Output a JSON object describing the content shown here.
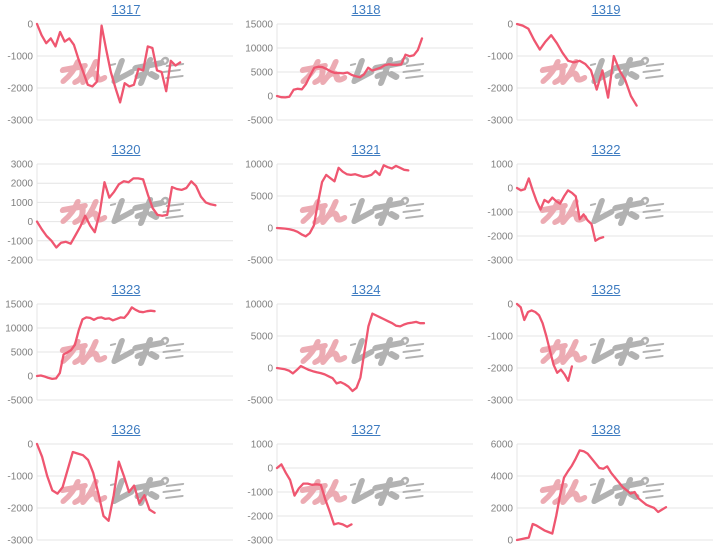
{
  "page": {
    "background": "#ffffff"
  },
  "style": {
    "line_color": "#ef5670",
    "link_color": "#3e7cc1",
    "grid_color": "#e4e4e4",
    "axis_label_color": "#7f7f7f"
  },
  "watermark": {
    "text": "みんレポ",
    "text_pink": "みん",
    "text_gray": "レポ",
    "pink": "#eba3ab",
    "gray": "#aaaaaa"
  },
  "chart_data": [
    {
      "id": "1317",
      "type": "line",
      "title": "1317",
      "xlabel": "",
      "ylabel": "",
      "legend": "none",
      "grid": true,
      "ylim": [
        -3000,
        0
      ],
      "yticks": [
        0,
        -1000,
        -2000,
        -3000
      ],
      "span": 0.73,
      "values": [
        0,
        -350,
        -600,
        -450,
        -700,
        -250,
        -550,
        -450,
        -650,
        -1100,
        -1500,
        -1900,
        -1950,
        -1800,
        -50,
        -800,
        -1500,
        -2000,
        -2450,
        -1850,
        -1950,
        -1900,
        -1400,
        -1450,
        -700,
        -750,
        -1450,
        -1500,
        -2100,
        -1150,
        -1300,
        -1200
      ]
    },
    {
      "id": "1318",
      "type": "line",
      "title": "1318",
      "xlabel": "",
      "ylabel": "",
      "legend": "none",
      "grid": true,
      "ylim": [
        -5000,
        15000
      ],
      "yticks": [
        15000,
        10000,
        5000,
        0,
        -5000
      ],
      "span": 0.74,
      "values": [
        0,
        -250,
        -300,
        -150,
        1300,
        1500,
        1400,
        2500,
        4300,
        5900,
        6100,
        6000,
        5600,
        5100,
        4800,
        4800,
        4700,
        4900,
        4400,
        4100,
        3900,
        4500,
        5900,
        5300,
        5600,
        5900,
        6400,
        6600,
        6500,
        6500,
        6600,
        8600,
        8300,
        8500,
        9600,
        12000
      ]
    },
    {
      "id": "1319",
      "type": "line",
      "title": "1319",
      "xlabel": "",
      "ylabel": "",
      "legend": "none",
      "grid": true,
      "ylim": [
        -3000,
        0
      ],
      "yticks": [
        0,
        -1000,
        -2000,
        -3000
      ],
      "span": 0.61,
      "values": [
        0,
        -50,
        -150,
        -500,
        -800,
        -550,
        -350,
        -600,
        -900,
        -1150,
        -1200,
        -1150,
        -1250,
        -1450,
        -2050,
        -1450,
        -2300,
        -1000,
        -1450,
        -1750,
        -2250,
        -2550
      ]
    },
    {
      "id": "1320",
      "type": "line",
      "title": "1320",
      "xlabel": "",
      "ylabel": "",
      "legend": "none",
      "grid": true,
      "ylim": [
        -2000,
        3000
      ],
      "yticks": [
        3000,
        2000,
        1000,
        0,
        -1000,
        -2000
      ],
      "span": 0.91,
      "values": [
        0,
        -400,
        -750,
        -1000,
        -1350,
        -1100,
        -1050,
        -1150,
        -700,
        -250,
        300,
        -200,
        -550,
        450,
        2050,
        1250,
        1550,
        1950,
        2100,
        2050,
        2250,
        2250,
        2200,
        1400,
        700,
        350,
        300,
        350,
        1800,
        1700,
        1650,
        1750,
        2100,
        1850,
        1300,
        1000,
        900,
        850
      ]
    },
    {
      "id": "1321",
      "type": "line",
      "title": "1321",
      "xlabel": "",
      "ylabel": "",
      "legend": "none",
      "grid": true,
      "ylim": [
        -5000,
        10000
      ],
      "yticks": [
        10000,
        5000,
        0,
        -5000
      ],
      "span": 0.67,
      "values": [
        0,
        -50,
        -100,
        -200,
        -350,
        -600,
        -1000,
        -1300,
        -800,
        400,
        4000,
        7200,
        8300,
        7800,
        7300,
        9400,
        8800,
        8400,
        8300,
        8400,
        8200,
        8000,
        8100,
        8300,
        8900,
        8300,
        9800,
        9500,
        9300,
        9700,
        9400,
        9100,
        9000
      ]
    },
    {
      "id": "1322",
      "type": "line",
      "title": "1322",
      "xlabel": "",
      "ylabel": "",
      "legend": "none",
      "grid": true,
      "ylim": [
        -3000,
        1000
      ],
      "yticks": [
        1000,
        0,
        -1000,
        -2000,
        -3000
      ],
      "span": 0.44,
      "values": [
        0,
        -100,
        -50,
        400,
        -100,
        -550,
        -900,
        -500,
        -600,
        -400,
        -550,
        -650,
        -350,
        -100,
        -200,
        -350,
        -1300,
        -1100,
        -1350,
        -1500,
        -2200,
        -2100,
        -2050
      ]
    },
    {
      "id": "1323",
      "type": "line",
      "title": "1323",
      "xlabel": "",
      "ylabel": "",
      "legend": "none",
      "grid": true,
      "ylim": [
        -5000,
        15000
      ],
      "yticks": [
        15000,
        10000,
        5000,
        0,
        -5000
      ],
      "span": 0.6,
      "values": [
        0,
        100,
        -100,
        -400,
        -600,
        -500,
        600,
        4500,
        4900,
        5400,
        6500,
        9500,
        11800,
        12200,
        12100,
        11700,
        12100,
        12200,
        11900,
        12000,
        11600,
        11900,
        12200,
        12100,
        13000,
        14300,
        13800,
        13400,
        13300,
        13500,
        13600,
        13500
      ]
    },
    {
      "id": "1324",
      "type": "line",
      "title": "1324",
      "xlabel": "",
      "ylabel": "",
      "legend": "none",
      "grid": true,
      "ylim": [
        -5000,
        10000
      ],
      "yticks": [
        10000,
        5000,
        0,
        -5000
      ],
      "span": 0.75,
      "values": [
        0,
        -100,
        -200,
        -400,
        -850,
        -300,
        300,
        0,
        -300,
        -500,
        -650,
        -800,
        -1000,
        -1300,
        -1600,
        -2400,
        -2200,
        -2500,
        -2900,
        -3600,
        -3100,
        -1500,
        2500,
        6500,
        8500,
        8200,
        7900,
        7600,
        7300,
        7000,
        6600,
        6500,
        6800,
        7000,
        7100,
        7200,
        7000,
        7000
      ]
    },
    {
      "id": "1325",
      "type": "line",
      "title": "1325",
      "xlabel": "",
      "ylabel": "",
      "legend": "none",
      "grid": true,
      "ylim": [
        -3000,
        0
      ],
      "yticks": [
        0,
        -1000,
        -2000,
        -3000
      ],
      "span": 0.28,
      "values": [
        0,
        -100,
        -500,
        -250,
        -200,
        -250,
        -350,
        -600,
        -1000,
        -1450,
        -1900,
        -2150,
        -2050,
        -2200,
        -2400,
        -1950
      ]
    },
    {
      "id": "1326",
      "type": "line",
      "title": "1326",
      "xlabel": "",
      "ylabel": "",
      "legend": "none",
      "grid": true,
      "ylim": [
        -3000,
        0
      ],
      "yticks": [
        0,
        -1000,
        -2000,
        -3000
      ],
      "span": 0.6,
      "values": [
        0,
        -400,
        -1000,
        -1450,
        -1550,
        -1350,
        -800,
        -250,
        -300,
        -350,
        -500,
        -900,
        -1550,
        -2250,
        -2400,
        -1600,
        -550,
        -1000,
        -1500,
        -1300,
        -1850,
        -1600,
        -2050,
        -2150
      ]
    },
    {
      "id": "1327",
      "type": "line",
      "title": "1327",
      "xlabel": "",
      "ylabel": "",
      "legend": "none",
      "grid": true,
      "ylim": [
        -3000,
        1000
      ],
      "yticks": [
        1000,
        0,
        -1000,
        -2000,
        -3000
      ],
      "span": 0.38,
      "values": [
        0,
        150,
        -200,
        -500,
        -1150,
        -850,
        -650,
        -650,
        -700,
        -680,
        -700,
        -1300,
        -1800,
        -2350,
        -2300,
        -2350,
        -2450,
        -2350
      ]
    },
    {
      "id": "1328",
      "type": "line",
      "title": "1328",
      "xlabel": "",
      "ylabel": "",
      "legend": "none",
      "grid": true,
      "ylim": [
        0,
        6000
      ],
      "yticks": [
        6000,
        4000,
        2000,
        0
      ],
      "span": 0.76,
      "values": [
        0,
        50,
        100,
        150,
        1000,
        900,
        750,
        600,
        500,
        400,
        1500,
        2800,
        3900,
        4300,
        4650,
        5100,
        5600,
        5550,
        5400,
        5100,
        4800,
        4500,
        4450,
        4600,
        4200,
        3900,
        3600,
        3300,
        3100,
        2900,
        3000,
        2600,
        2400,
        2200,
        2100,
        2000,
        1750,
        1900,
        2050
      ]
    }
  ]
}
